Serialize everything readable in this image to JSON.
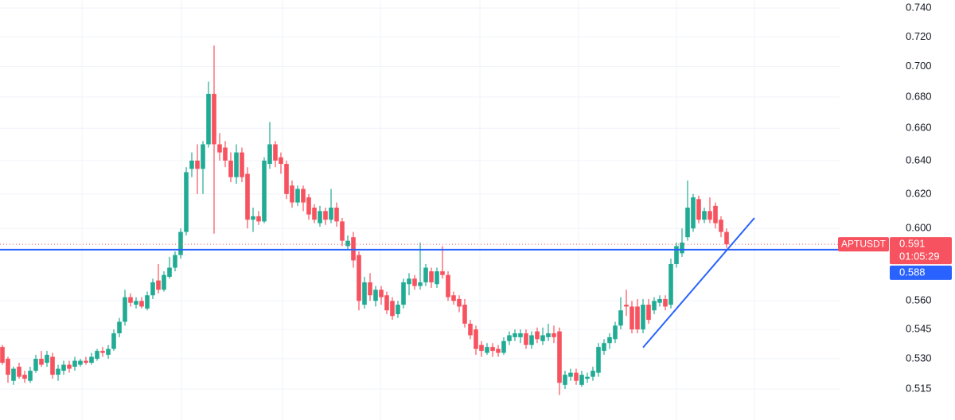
{
  "chart_data": {
    "type": "candlestick",
    "symbol": "APTUSDT",
    "log_scale": true,
    "grid": true,
    "up_color": "#22ab94",
    "down_color": "#f7525f",
    "ylim": [
      0.5,
      0.7457
    ],
    "yticks": [
      {
        "value": 0.74,
        "label": "0.740"
      },
      {
        "value": 0.72,
        "label": "0.720"
      },
      {
        "value": 0.7,
        "label": "0.700"
      },
      {
        "value": 0.68,
        "label": "0.680"
      },
      {
        "value": 0.66,
        "label": "0.660"
      },
      {
        "value": 0.64,
        "label": "0.640"
      },
      {
        "value": 0.62,
        "label": "0.620"
      },
      {
        "value": 0.6,
        "label": "0.600"
      },
      {
        "value": 0.56,
        "label": "0.560"
      },
      0.545,
      {
        "value": 0.53,
        "label": "0.530"
      },
      0.515
    ],
    "last_price": 0.591,
    "countdown": "01:05:29",
    "price_line": {
      "value": 0.588,
      "color": "#2962ff"
    },
    "trendline": {
      "x": [
        115,
        135
      ],
      "y": [
        0.5357,
        0.606
      ],
      "color": "#2962ff"
    },
    "ohlc": [
      [
        0.536,
        0.537,
        0.527,
        0.528
      ],
      [
        0.53,
        0.531,
        0.518,
        0.522
      ],
      [
        0.519,
        0.526,
        0.517,
        0.525
      ],
      [
        0.526,
        0.528,
        0.52,
        0.521
      ],
      [
        0.522,
        0.524,
        0.518,
        0.52
      ],
      [
        0.519,
        0.526,
        0.518,
        0.524
      ],
      [
        0.524,
        0.532,
        0.523,
        0.53
      ],
      [
        0.53,
        0.534,
        0.526,
        0.527
      ],
      [
        0.528,
        0.534,
        0.526,
        0.532
      ],
      [
        0.531,
        0.533,
        0.52,
        0.522
      ],
      [
        0.522,
        0.527,
        0.519,
        0.525
      ],
      [
        0.524,
        0.529,
        0.522,
        0.527
      ],
      [
        0.527,
        0.529,
        0.523,
        0.525
      ],
      [
        0.526,
        0.531,
        0.524,
        0.529
      ],
      [
        0.527,
        0.53,
        0.526,
        0.529
      ],
      [
        0.529,
        0.531,
        0.527,
        0.528
      ],
      [
        0.528,
        0.533,
        0.527,
        0.531
      ],
      [
        0.53,
        0.535,
        0.529,
        0.534
      ],
      [
        0.534,
        0.536,
        0.531,
        0.533
      ],
      [
        0.532,
        0.537,
        0.53,
        0.535
      ],
      [
        0.535,
        0.545,
        0.534,
        0.543
      ],
      [
        0.543,
        0.551,
        0.541,
        0.549
      ],
      [
        0.549,
        0.566,
        0.547,
        0.562
      ],
      [
        0.562,
        0.564,
        0.557,
        0.559
      ],
      [
        0.558,
        0.562,
        0.556,
        0.56
      ],
      [
        0.56,
        0.562,
        0.556,
        0.557
      ],
      [
        0.556,
        0.565,
        0.555,
        0.563
      ],
      [
        0.563,
        0.572,
        0.561,
        0.57
      ],
      [
        0.571,
        0.58,
        0.564,
        0.566
      ],
      [
        0.566,
        0.576,
        0.565,
        0.574
      ],
      [
        0.573,
        0.584,
        0.572,
        0.578
      ],
      [
        0.578,
        0.587,
        0.576,
        0.585
      ],
      [
        0.585,
        0.6,
        0.583,
        0.598
      ],
      [
        0.598,
        0.636,
        0.596,
        0.633
      ],
      [
        0.635,
        0.645,
        0.63,
        0.64
      ],
      [
        0.64,
        0.65,
        0.62,
        0.635
      ],
      [
        0.635,
        0.652,
        0.62,
        0.65
      ],
      [
        0.65,
        0.69,
        0.648,
        0.682
      ],
      [
        0.682,
        0.714,
        0.597,
        0.65
      ],
      [
        0.65,
        0.657,
        0.64,
        0.645
      ],
      [
        0.648,
        0.652,
        0.636,
        0.64
      ],
      [
        0.64,
        0.645,
        0.627,
        0.63
      ],
      [
        0.63,
        0.65,
        0.626,
        0.645
      ],
      [
        0.645,
        0.648,
        0.627,
        0.63
      ],
      [
        0.632,
        0.636,
        0.6,
        0.605
      ],
      [
        0.605,
        0.612,
        0.598,
        0.607
      ],
      [
        0.607,
        0.61,
        0.602,
        0.604
      ],
      [
        0.604,
        0.642,
        0.603,
        0.64
      ],
      [
        0.638,
        0.664,
        0.635,
        0.65
      ],
      [
        0.65,
        0.652,
        0.636,
        0.64
      ],
      [
        0.642,
        0.645,
        0.632,
        0.638
      ],
      [
        0.638,
        0.64,
        0.617,
        0.62
      ],
      [
        0.625,
        0.628,
        0.612,
        0.615
      ],
      [
        0.615,
        0.625,
        0.613,
        0.623
      ],
      [
        0.623,
        0.625,
        0.61,
        0.615
      ],
      [
        0.618,
        0.62,
        0.605,
        0.608
      ],
      [
        0.612,
        0.614,
        0.603,
        0.605
      ],
      [
        0.603,
        0.613,
        0.601,
        0.61
      ],
      [
        0.61,
        0.612,
        0.602,
        0.605
      ],
      [
        0.605,
        0.623,
        0.603,
        0.612
      ],
      [
        0.612,
        0.615,
        0.601,
        0.604
      ],
      [
        0.604,
        0.606,
        0.59,
        0.593
      ],
      [
        0.59,
        0.596,
        0.588,
        0.593
      ],
      [
        0.595,
        0.598,
        0.578,
        0.582
      ],
      [
        0.585,
        0.587,
        0.555,
        0.56
      ],
      [
        0.558,
        0.573,
        0.556,
        0.57
      ],
      [
        0.57,
        0.575,
        0.56,
        0.563
      ],
      [
        0.56,
        0.568,
        0.557,
        0.566
      ],
      [
        0.566,
        0.568,
        0.558,
        0.562
      ],
      [
        0.563,
        0.565,
        0.553,
        0.555
      ],
      [
        0.56,
        0.562,
        0.55,
        0.552
      ],
      [
        0.553,
        0.56,
        0.551,
        0.558
      ],
      [
        0.558,
        0.572,
        0.556,
        0.57
      ],
      [
        0.569,
        0.575,
        0.563,
        0.572
      ],
      [
        0.572,
        0.574,
        0.566,
        0.568
      ],
      [
        0.568,
        0.592,
        0.566,
        0.57
      ],
      [
        0.57,
        0.58,
        0.568,
        0.578
      ],
      [
        0.576,
        0.578,
        0.567,
        0.57
      ],
      [
        0.569,
        0.578,
        0.567,
        0.576
      ],
      [
        0.576,
        0.59,
        0.572,
        0.574
      ],
      [
        0.574,
        0.576,
        0.56,
        0.562
      ],
      [
        0.563,
        0.565,
        0.558,
        0.56
      ],
      [
        0.561,
        0.563,
        0.554,
        0.557
      ],
      [
        0.558,
        0.561,
        0.546,
        0.548
      ],
      [
        0.548,
        0.55,
        0.54,
        0.542
      ],
      [
        0.545,
        0.547,
        0.532,
        0.535
      ],
      [
        0.537,
        0.539,
        0.531,
        0.534
      ],
      [
        0.533,
        0.538,
        0.532,
        0.536
      ],
      [
        0.536,
        0.538,
        0.531,
        0.534
      ],
      [
        0.535,
        0.537,
        0.531,
        0.533
      ],
      [
        0.533,
        0.541,
        0.532,
        0.539
      ],
      [
        0.539,
        0.544,
        0.537,
        0.542
      ],
      [
        0.541,
        0.545,
        0.539,
        0.543
      ],
      [
        0.541,
        0.545,
        0.538,
        0.543
      ],
      [
        0.543,
        0.545,
        0.535,
        0.537
      ],
      [
        0.537,
        0.544,
        0.535,
        0.542
      ],
      [
        0.544,
        0.546,
        0.538,
        0.54
      ],
      [
        0.539,
        0.546,
        0.537,
        0.542
      ],
      [
        0.541,
        0.548,
        0.539,
        0.543
      ],
      [
        0.543,
        0.547,
        0.538,
        0.541
      ],
      [
        0.544,
        0.546,
        0.512,
        0.518
      ],
      [
        0.517,
        0.524,
        0.515,
        0.522
      ],
      [
        0.521,
        0.525,
        0.519,
        0.523
      ],
      [
        0.523,
        0.525,
        0.517,
        0.519
      ],
      [
        0.517,
        0.524,
        0.516,
        0.522
      ],
      [
        0.52,
        0.523,
        0.518,
        0.521
      ],
      [
        0.521,
        0.526,
        0.519,
        0.524
      ],
      [
        0.523,
        0.538,
        0.521,
        0.536
      ],
      [
        0.534,
        0.54,
        0.532,
        0.538
      ],
      [
        0.538,
        0.543,
        0.535,
        0.541
      ],
      [
        0.54,
        0.549,
        0.538,
        0.547
      ],
      [
        0.547,
        0.562,
        0.545,
        0.555
      ],
      [
        0.558,
        0.566,
        0.552,
        0.557
      ],
      [
        0.557,
        0.56,
        0.543,
        0.545
      ],
      [
        0.557,
        0.561,
        0.543,
        0.545
      ],
      [
        0.545,
        0.561,
        0.543,
        0.558
      ],
      [
        0.558,
        0.561,
        0.548,
        0.55
      ],
      [
        0.555,
        0.562,
        0.553,
        0.56
      ],
      [
        0.559,
        0.563,
        0.557,
        0.561
      ],
      [
        0.561,
        0.563,
        0.555,
        0.557
      ],
      [
        0.558,
        0.583,
        0.556,
        0.58
      ],
      [
        0.58,
        0.592,
        0.578,
        0.59
      ],
      [
        0.586,
        0.6,
        0.584,
        0.592
      ],
      [
        0.595,
        0.628,
        0.593,
        0.612
      ],
      [
        0.6,
        0.62,
        0.598,
        0.618
      ],
      [
        0.617,
        0.619,
        0.603,
        0.605
      ],
      [
        0.605,
        0.612,
        0.603,
        0.61
      ],
      [
        0.61,
        0.618,
        0.603,
        0.605
      ],
      [
        0.613,
        0.615,
        0.6,
        0.603
      ],
      [
        0.605,
        0.607,
        0.595,
        0.598
      ],
      [
        0.598,
        0.6,
        0.589,
        0.591
      ]
    ]
  }
}
